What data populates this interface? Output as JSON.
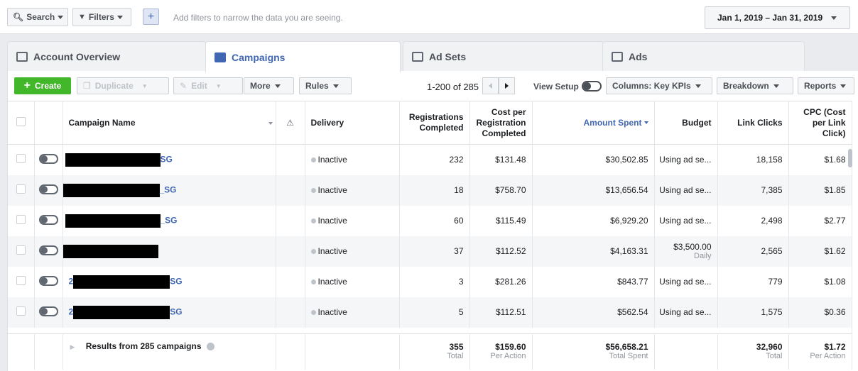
{
  "filterbar": {
    "search_label": "Search",
    "filters_label": "Filters",
    "add_icon": "+",
    "hint": "Add filters to narrow the data you are seeing.",
    "date_range": "Jan 1, 2019 – Jan 31, 2019"
  },
  "tabs": [
    {
      "label": "Account Overview",
      "icon": "account-overview-icon"
    },
    {
      "label": "Campaigns",
      "icon": "campaigns-icon"
    },
    {
      "label": "Ad Sets",
      "icon": "ad-sets-icon"
    },
    {
      "label": "Ads",
      "icon": "ads-icon"
    }
  ],
  "toolbar": {
    "create": "Create",
    "duplicate": "Duplicate",
    "edit": "Edit",
    "more": "More",
    "rules": "Rules",
    "pager": "1-200 of 285",
    "view_setup": "View Setup",
    "columns": "Columns: Key KPIs",
    "breakdown": "Breakdown",
    "reports": "Reports"
  },
  "columns": {
    "name": "Campaign Name",
    "warning": "⚠",
    "delivery": "Delivery",
    "registrations": "Registrations Completed",
    "cost_per_reg": "Cost per Registration Completed",
    "amount_spent": "Amount Spent",
    "budget": "Budget",
    "link_clicks": "Link Clicks",
    "cpc": "CPC (Cost per Link Click)"
  },
  "rows": [
    {
      "name_suffix": "SG",
      "delivery": "Inactive",
      "registrations": "232",
      "cost": "$131.48",
      "spent": "$30,502.85",
      "budget": "Using ad se...",
      "budget_sub": "",
      "clicks": "18,158",
      "cpc": "$1.68"
    },
    {
      "name_suffix": "_SG",
      "delivery": "Inactive",
      "registrations": "18",
      "cost": "$758.70",
      "spent": "$13,656.54",
      "budget": "Using ad se...",
      "budget_sub": "",
      "clicks": "7,385",
      "cpc": "$1.85"
    },
    {
      "name_suffix": "_SG",
      "delivery": "Inactive",
      "registrations": "60",
      "cost": "$115.49",
      "spent": "$6,929.20",
      "budget": "Using ad se...",
      "budget_sub": "",
      "clicks": "2,498",
      "cpc": "$2.77"
    },
    {
      "name_suffix": "",
      "delivery": "Inactive",
      "registrations": "37",
      "cost": "$112.52",
      "spent": "$4,163.31",
      "budget": "$3,500.00",
      "budget_sub": "Daily",
      "clicks": "2,565",
      "cpc": "$1.62"
    },
    {
      "name_prefix": "2",
      "name_suffix": "SG",
      "delivery": "Inactive",
      "registrations": "3",
      "cost": "$281.26",
      "spent": "$843.77",
      "budget": "Using ad se...",
      "budget_sub": "",
      "clicks": "779",
      "cpc": "$1.08"
    },
    {
      "name_prefix": "2",
      "name_suffix": "SG",
      "delivery": "Inactive",
      "registrations": "5",
      "cost": "$112.51",
      "spent": "$562.54",
      "budget": "Using ad se...",
      "budget_sub": "",
      "clicks": "1,575",
      "cpc": "$0.36"
    }
  ],
  "totals": {
    "label": "Results from 285 campaigns",
    "registrations": "355",
    "registrations_sub": "Total",
    "cost": "$159.60",
    "cost_sub": "Per Action",
    "spent": "$56,658.21",
    "spent_sub": "Total Spent",
    "clicks": "32,960",
    "clicks_sub": "Total",
    "cpc": "$1.72",
    "cpc_sub": "Per Action"
  },
  "colors": {
    "accent": "#4267b2",
    "create": "#42b72a"
  }
}
